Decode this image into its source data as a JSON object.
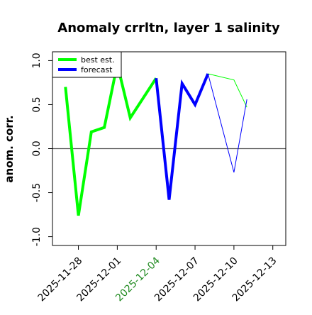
{
  "chart_data": {
    "type": "line",
    "title": "Anomaly crrltn, layer 1 salinity",
    "xlabel": "",
    "ylabel": "anom. corr.",
    "ylim": [
      -1.1,
      1.1
    ],
    "yticks": [
      "-1.0",
      "-0.5",
      "0.0",
      "0.5",
      "1.0"
    ],
    "ytick_values": [
      -1.0,
      -0.5,
      0.0,
      0.5,
      1.0
    ],
    "xlim": [
      "2025-11-26",
      "2025-12-14"
    ],
    "xticks": [
      "2025-11-28",
      "2025-12-01",
      "2025-12-04",
      "2025-12-07",
      "2025-12-10",
      "2025-12-13"
    ],
    "highlighted_xtick": "2025-12-04",
    "highlight_color": "#228b22",
    "reference_line": {
      "y": 0.0,
      "x_start": "2025-11-26",
      "x_end": "2025-12-14",
      "color": "#555555"
    },
    "legend": {
      "position": "top-left"
    },
    "series": [
      {
        "name": "best est.",
        "color": "#00ff00",
        "points": [
          {
            "x": "2025-11-27",
            "y": 0.7
          },
          {
            "x": "2025-11-28",
            "y": -0.76
          },
          {
            "x": "2025-11-29",
            "y": 0.19
          },
          {
            "x": "2025-11-30",
            "y": 0.24
          },
          {
            "x": "2025-12-01",
            "y": 0.96
          },
          {
            "x": "2025-12-02",
            "y": 0.35
          },
          {
            "x": "2025-12-04",
            "y": 0.8
          }
        ]
      },
      {
        "name": "forecast",
        "color": "#0000ff",
        "points": [
          {
            "x": "2025-12-04",
            "y": 0.8
          },
          {
            "x": "2025-12-05",
            "y": -0.58
          },
          {
            "x": "2025-12-06",
            "y": 0.74
          },
          {
            "x": "2025-12-07",
            "y": 0.5
          },
          {
            "x": "2025-12-08",
            "y": 0.85
          }
        ]
      },
      {
        "name": "",
        "color": "#00ff00",
        "points": [
          {
            "x": "2025-12-08",
            "y": 0.85
          },
          {
            "x": "2025-12-10",
            "y": 0.78
          },
          {
            "x": "2025-12-11",
            "y": 0.47
          }
        ]
      },
      {
        "name": "",
        "color": "#0000ff",
        "points": [
          {
            "x": "2025-12-08",
            "y": 0.85
          },
          {
            "x": "2025-12-10",
            "y": -0.27
          },
          {
            "x": "2025-12-11",
            "y": 0.56
          }
        ]
      }
    ]
  }
}
